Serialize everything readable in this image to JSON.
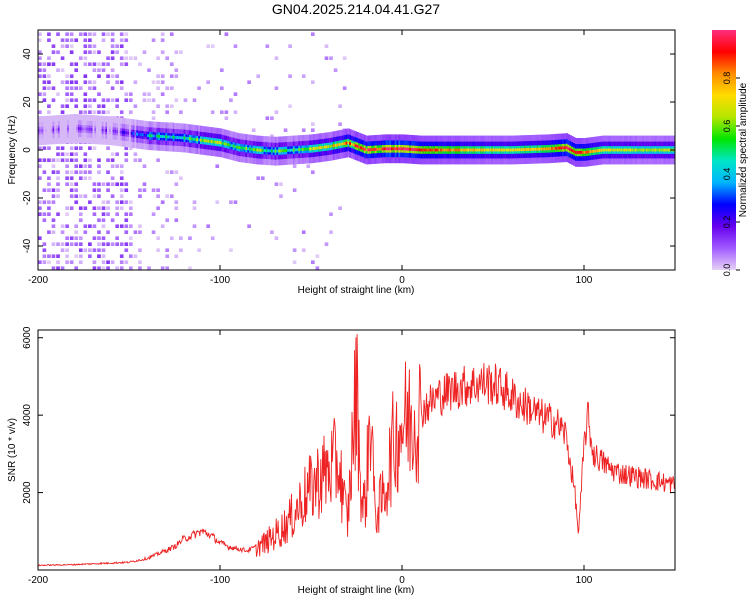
{
  "figure": {
    "title": "GN04.2025.214.04.41.G27"
  },
  "chart_data": [
    {
      "type": "heatmap",
      "xlabel": "Height of straight line (km)",
      "ylabel": "Frequency (Hz)",
      "xlim": [
        -200,
        150
      ],
      "ylim": [
        -50,
        50
      ],
      "xticks": [
        -200,
        -100,
        0,
        100
      ],
      "yticks": [
        -40,
        -20,
        0,
        20,
        40
      ],
      "grid": false,
      "colorbar": {
        "label": "Normalized spectral amplitude",
        "range": [
          0,
          1
        ],
        "ticks": [
          0.0,
          0.2,
          0.4,
          0.6,
          0.8
        ],
        "colormap": [
          "#e6d2f5",
          "#a05aff",
          "#6600ee",
          "#0000ff",
          "#00b4ff",
          "#00e6c8",
          "#00e600",
          "#b4e600",
          "#ffdc00",
          "#ff8c00",
          "#ff0000",
          "#ff2d7d"
        ]
      },
      "ridge": {
        "x": [
          -200,
          -180,
          -160,
          -150,
          -140,
          -130,
          -120,
          -110,
          -100,
          -90,
          -80,
          -70,
          -60,
          -50,
          -40,
          -30,
          -20,
          -10,
          0,
          10,
          20,
          40,
          60,
          80,
          90,
          95,
          100,
          110,
          130,
          150
        ],
        "freq": [
          8,
          9,
          8,
          7,
          6,
          5.5,
          5,
          4,
          3,
          1,
          0,
          -0.5,
          0,
          0.5,
          1.5,
          3,
          0,
          0.5,
          0.5,
          0,
          0,
          0,
          0,
          0.5,
          1,
          -1,
          -1,
          0,
          0,
          0
        ],
        "amplitude": [
          0.05,
          0.05,
          0.08,
          0.15,
          0.4,
          0.45,
          0.5,
          0.55,
          0.6,
          0.55,
          0.55,
          0.5,
          0.55,
          0.6,
          0.7,
          0.8,
          0.9,
          0.95,
          1.0,
          0.9,
          0.85,
          0.75,
          0.7,
          0.8,
          0.95,
          0.9,
          0.85,
          0.7,
          0.65,
          0.65
        ]
      }
    },
    {
      "type": "line",
      "xlabel": "Height of straight line (km)",
      "ylabel": "SNR (10 * v/v)",
      "xlim": [
        -200,
        150
      ],
      "ylim": [
        0,
        6200
      ],
      "xticks": [
        -200,
        -100,
        0,
        100
      ],
      "yticks": [
        2000,
        4000,
        6000
      ],
      "grid": false,
      "color": "#ee2222",
      "series": [
        {
          "x": [
            -200,
            -190,
            -180,
            -170,
            -160,
            -150,
            -140,
            -130,
            -125,
            -120,
            -115,
            -110,
            -105,
            -100,
            -95,
            -90,
            -85,
            -80,
            -75,
            -70,
            -65,
            -60,
            -55,
            -50,
            -45,
            -40,
            -35,
            -30,
            -25,
            -22,
            -20,
            -17,
            -15,
            -12,
            -10,
            -5,
            0,
            5,
            10,
            15,
            20,
            25,
            30,
            35,
            40,
            45,
            50,
            55,
            60,
            65,
            70,
            75,
            80,
            85,
            90,
            95,
            97,
            100,
            102,
            105,
            110,
            115,
            120,
            130,
            140,
            150
          ],
          "y": [
            120,
            130,
            140,
            160,
            180,
            200,
            300,
            500,
            600,
            800,
            900,
            1000,
            900,
            700,
            600,
            550,
            500,
            600,
            700,
            900,
            1100,
            1400,
            1800,
            2100,
            2400,
            2600,
            2800,
            1200,
            4800,
            1600,
            1800,
            4400,
            1400,
            1700,
            1900,
            3200,
            3800,
            3900,
            4100,
            4300,
            4500,
            4600,
            4700,
            4750,
            4800,
            4850,
            4800,
            4700,
            4500,
            4300,
            4200,
            4000,
            3900,
            3800,
            3500,
            2000,
            900,
            3200,
            4000,
            3000,
            2800,
            2600,
            2500,
            2400,
            2300,
            2200
          ]
        }
      ]
    }
  ]
}
